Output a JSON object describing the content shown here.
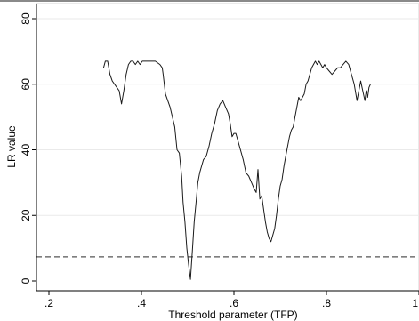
{
  "chart_data": {
    "type": "line",
    "title": "",
    "xlabel": "Threshold parameter (TFP)",
    "ylabel": "LR value",
    "xlim": [
      0.2,
      1.0
    ],
    "ylim": [
      0,
      80
    ],
    "x_ticks": [
      {
        "value": 0.2,
        "label": ".2"
      },
      {
        "value": 0.4,
        "label": ".4"
      },
      {
        "value": 0.6,
        "label": ".6"
      },
      {
        "value": 0.8,
        "label": ".8"
      },
      {
        "value": 1.0,
        "label": "1"
      }
    ],
    "y_ticks": [
      {
        "value": 0,
        "label": "0"
      },
      {
        "value": 20,
        "label": "20"
      },
      {
        "value": 40,
        "label": "40"
      },
      {
        "value": 60,
        "label": "60"
      },
      {
        "value": 80,
        "label": "80"
      }
    ],
    "grid": "horizontal",
    "critical_value": 7.35,
    "series": [
      {
        "x": [
          0.318,
          0.322,
          0.327,
          0.332,
          0.337,
          0.342,
          0.347,
          0.352,
          0.357,
          0.362,
          0.367,
          0.372,
          0.377,
          0.382,
          0.387,
          0.392,
          0.397,
          0.402,
          0.41,
          0.42,
          0.43,
          0.44,
          0.445,
          0.447,
          0.452,
          0.457,
          0.462,
          0.467,
          0.472,
          0.477,
          0.482,
          0.487,
          0.49,
          0.494,
          0.498,
          0.502,
          0.506,
          0.51,
          0.514,
          0.518,
          0.522,
          0.526,
          0.53,
          0.534,
          0.54,
          0.546,
          0.552,
          0.558,
          0.564,
          0.57,
          0.576,
          0.582,
          0.588,
          0.592,
          0.596,
          0.6,
          0.604,
          0.608,
          0.614,
          0.62,
          0.626,
          0.632,
          0.638,
          0.644,
          0.648,
          0.652,
          0.656,
          0.66,
          0.664,
          0.668,
          0.672,
          0.676,
          0.68,
          0.684,
          0.688,
          0.692,
          0.696,
          0.7,
          0.704,
          0.708,
          0.712,
          0.716,
          0.72,
          0.724,
          0.728,
          0.732,
          0.736,
          0.74,
          0.744,
          0.748,
          0.752,
          0.756,
          0.76,
          0.764,
          0.768,
          0.772,
          0.776,
          0.78,
          0.784,
          0.788,
          0.792,
          0.796,
          0.8,
          0.806,
          0.812,
          0.818,
          0.824,
          0.83,
          0.836,
          0.842,
          0.848,
          0.854,
          0.86,
          0.866,
          0.87,
          0.874,
          0.877,
          0.88,
          0.883,
          0.886,
          0.889,
          0.892,
          0.895
        ],
        "y": [
          65,
          67,
          67,
          63,
          61,
          60,
          59,
          58,
          54,
          58,
          63,
          66,
          67,
          67,
          66,
          67,
          66,
          67,
          67,
          67,
          67,
          66,
          65,
          63,
          57,
          55,
          53,
          50,
          47,
          40,
          39,
          32,
          24,
          18,
          10,
          5,
          0.5,
          9,
          18,
          24,
          30,
          33,
          35,
          37,
          38,
          41,
          45,
          48,
          52,
          54,
          55,
          53,
          51,
          48,
          44,
          45,
          45,
          43,
          40,
          37,
          33,
          32,
          30,
          28,
          27,
          34,
          25,
          26,
          22,
          18,
          15,
          13,
          12,
          14,
          16,
          20,
          25,
          29,
          31,
          35,
          38,
          41,
          44,
          46,
          47,
          50,
          53,
          56,
          55,
          56,
          57,
          60,
          61,
          63,
          65,
          66,
          67,
          66,
          67,
          66,
          65,
          66,
          65,
          64,
          63,
          64,
          65,
          65,
          66,
          67,
          66,
          63,
          60,
          55,
          58,
          61,
          59,
          57,
          55,
          58,
          56,
          59,
          60
        ]
      }
    ]
  }
}
